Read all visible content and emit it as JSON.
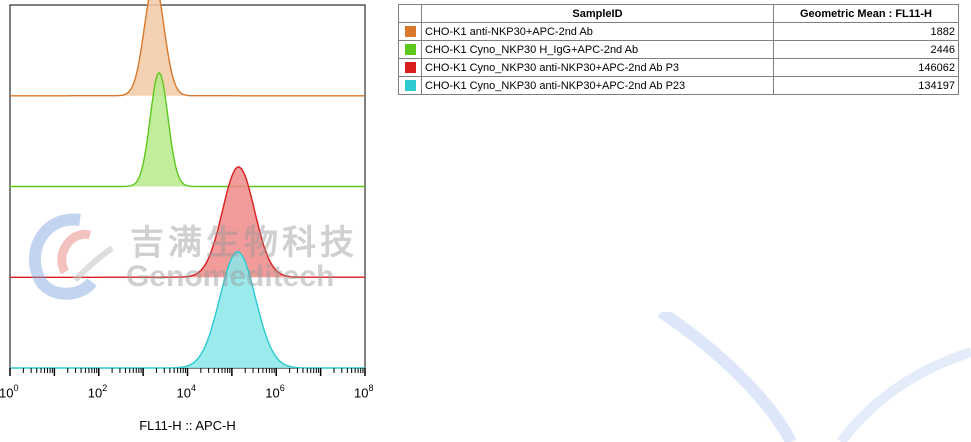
{
  "chart_data": {
    "type": "area",
    "title": "",
    "xlabel": "FL11-H :: APC-H",
    "ylabel": "",
    "x_scale": "log",
    "xlim": [
      1,
      100000000
    ],
    "x_ticks": [
      {
        "base": "10",
        "exp": "0",
        "value": 1
      },
      {
        "base": "10",
        "exp": "2",
        "value": 100
      },
      {
        "base": "10",
        "exp": "4",
        "value": 10000
      },
      {
        "base": "10",
        "exp": "6",
        "value": 1000000
      },
      {
        "base": "10",
        "exp": "8",
        "value": 100000000
      }
    ],
    "layout": "offset-stacked-histograms",
    "series": [
      {
        "name": "CHO-K1 anti-NKP30+APC-2nd Ab",
        "color": "#d9782a",
        "fill": "#f2c9a6",
        "geometric_mean": 1882,
        "peak_log10": 3.25,
        "width_log10": 0.22,
        "relative_height": 0.98
      },
      {
        "name": "CHO-K1 Cyno_NKP30 H_IgG+APC-2nd Ab",
        "color": "#5dc81c",
        "fill": "#b6ea8c",
        "geometric_mean": 2446,
        "peak_log10": 3.36,
        "width_log10": 0.2,
        "relative_height": 0.98
      },
      {
        "name": "CHO-K1 Cyno_NKP30 anti-NKP30+APC-2nd Ab P3",
        "color": "#d81e1e",
        "fill": "#ef8a8a",
        "geometric_mean": 146062,
        "peak_log10": 5.15,
        "width_log10": 0.36,
        "relative_height": 0.95
      },
      {
        "name": "CHO-K1 Cyno_NKP30 anti-NKP30+APC-2nd Ab P23",
        "color": "#2cc9cf",
        "fill": "#8ae7ea",
        "geometric_mean": 134197,
        "peak_log10": 5.13,
        "width_log10": 0.4,
        "relative_height": 1.0
      }
    ],
    "grid": false,
    "legend": "table-right"
  },
  "table": {
    "headers": [
      "",
      "SampleID",
      "Geometric Mean : FL11-H"
    ],
    "rows": [
      {
        "color": "#d9782a",
        "sample": "CHO-K1 anti-NKP30+APC-2nd Ab",
        "value": "1882"
      },
      {
        "color": "#5dc81c",
        "sample": "CHO-K1 Cyno_NKP30 H_IgG+APC-2nd Ab",
        "value": "2446"
      },
      {
        "color": "#d81e1e",
        "sample": "CHO-K1 Cyno_NKP30 anti-NKP30+APC-2nd Ab P3",
        "value": "146062"
      },
      {
        "color": "#2cc9cf",
        "sample": "CHO-K1 Cyno_NKP30 anti-NKP30+APC-2nd Ab P23",
        "value": "134197"
      }
    ]
  },
  "watermark": {
    "cn": "吉满生物科技",
    "en": "Genomeditech"
  }
}
